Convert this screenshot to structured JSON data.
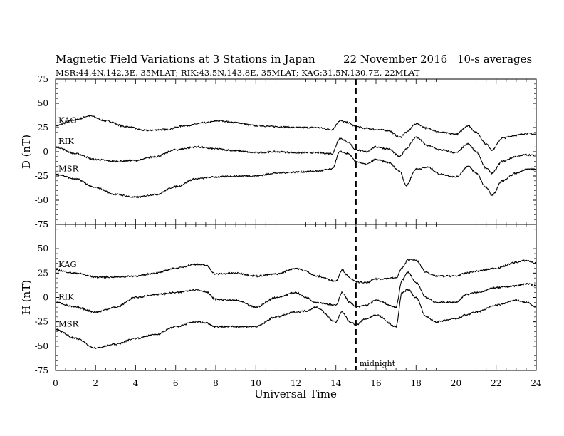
{
  "chart_data": {
    "type": "line",
    "title": "Magnetic Field Variations at 3 Stations in Japan",
    "date": "22 November 2016",
    "averaging": "10-s averages",
    "stations_info": "MSR:44.4N,142.3E, 35MLAT;  RIK:43.5N,143.8E, 35MLAT;  KAG:31.5N,130.7E, 22MLAT",
    "xlabel": "Universal Time",
    "xlim": [
      0,
      24
    ],
    "xticks": [
      "0",
      "2",
      "4",
      "6",
      "8",
      "10",
      "12",
      "14",
      "16",
      "18",
      "20",
      "22",
      "24"
    ],
    "midnight_line_x": 15,
    "midnight_label": "midnight",
    "panels": [
      {
        "ylabel": "D (nT)",
        "ylim": [
          -75,
          75
        ],
        "yticks": [
          "75",
          "50",
          "25",
          "0",
          "-25",
          "-50",
          "-75"
        ],
        "series": [
          {
            "name": "KAG",
            "x": [
              0,
              1,
              1.7,
              2.5,
              3.5,
              4.5,
              5.5,
              6.5,
              7.5,
              8.2,
              9,
              10,
              11,
              12,
              13,
              13.8,
              14.2,
              14.6,
              15,
              15.5,
              16,
              16.6,
              17.2,
              17.5,
              18,
              18.6,
              19.2,
              20,
              20.6,
              21,
              21.5,
              21.8,
              22.3,
              23,
              23.5,
              24
            ],
            "values": [
              27,
              33,
              37,
              32,
              26,
              22,
              23,
              27,
              30,
              32,
              30,
              27,
              26,
              25,
              25,
              23,
              32,
              30,
              26,
              24,
              23,
              22,
              15,
              20,
              29,
              24,
              20,
              18,
              27,
              20,
              8,
              2,
              14,
              17,
              19,
              18
            ]
          },
          {
            "name": "RIK",
            "x": [
              0,
              1,
              2,
              3,
              4,
              5,
              6,
              7,
              8,
              9,
              10,
              11,
              12,
              13,
              13.8,
              14.2,
              14.6,
              15,
              15.5,
              16,
              16.6,
              17.2,
              17.5,
              18,
              18.6,
              19.2,
              20,
              20.6,
              21,
              21.5,
              21.8,
              22.3,
              23,
              23.5,
              24
            ],
            "values": [
              5,
              -2,
              -8,
              -10,
              -9,
              -5,
              2,
              5,
              3,
              1,
              -1,
              0,
              -1,
              -1,
              -2,
              14,
              10,
              2,
              0,
              5,
              3,
              -5,
              3,
              15,
              6,
              2,
              -1,
              8,
              0,
              -17,
              -22,
              -10,
              -5,
              -3,
              -4
            ]
          },
          {
            "name": "MSR",
            "x": [
              0,
              1,
              2,
              3,
              4,
              5,
              6,
              7,
              8,
              9,
              10,
              11,
              12,
              13,
              13.8,
              14.2,
              14.6,
              15,
              15.5,
              16,
              16.6,
              17.2,
              17.5,
              18,
              18.6,
              19.2,
              20,
              20.6,
              21,
              21.5,
              21.8,
              22.3,
              23,
              23.5,
              24
            ],
            "values": [
              -23,
              -28,
              -37,
              -44,
              -47,
              -44,
              -36,
              -28,
              -26,
              -25,
              -25,
              -22,
              -21,
              -20,
              -18,
              0,
              -2,
              -10,
              -13,
              -8,
              -11,
              -20,
              -35,
              -18,
              -16,
              -23,
              -26,
              -15,
              -22,
              -37,
              -45,
              -30,
              -22,
              -18,
              -18
            ]
          }
        ]
      },
      {
        "ylabel": "H (nT)",
        "ylim": [
          -75,
          75
        ],
        "yticks": [
          "75",
          "50",
          "25",
          "0",
          "-25",
          "-50",
          "-75"
        ],
        "series": [
          {
            "name": "KAG",
            "x": [
              0,
              1,
              2,
              3,
              4,
              5,
              6,
              7,
              7.5,
              8,
              9,
              10,
              11,
              12,
              12.5,
              13,
              14,
              14.3,
              14.7,
              15,
              15.5,
              16,
              17,
              17.3,
              17.6,
              18,
              18.5,
              19,
              20,
              20.5,
              21,
              22,
              23,
              23.5,
              24
            ],
            "values": [
              28,
              25,
              21,
              21,
              22,
              25,
              30,
              34,
              33,
              24,
              25,
              22,
              24,
              30,
              27,
              22,
              17,
              28,
              20,
              16,
              15,
              19,
              20,
              30,
              39,
              38,
              26,
              22,
              22,
              25,
              27,
              30,
              36,
              38,
              35
            ]
          },
          {
            "name": "RIK",
            "x": [
              0,
              1,
              2,
              3,
              4,
              5,
              6,
              7,
              7.5,
              8,
              9,
              10,
              11,
              12,
              12.5,
              13,
              14,
              14.3,
              14.7,
              15,
              15.5,
              16,
              17,
              17.3,
              17.6,
              18,
              18.5,
              19,
              20,
              20.5,
              21,
              22,
              23,
              23.5,
              24
            ],
            "values": [
              -5,
              -10,
              -15,
              -10,
              0,
              3,
              5,
              8,
              6,
              -2,
              -3,
              -10,
              0,
              5,
              0,
              -5,
              -8,
              5,
              -5,
              -10,
              -8,
              -3,
              -10,
              18,
              26,
              15,
              0,
              -5,
              -5,
              3,
              5,
              10,
              12,
              14,
              12
            ]
          },
          {
            "name": "MSR",
            "x": [
              0,
              1,
              2,
              3,
              4,
              5,
              6,
              7,
              7.5,
              8,
              9,
              10,
              11,
              12,
              12.5,
              13,
              14,
              14.3,
              14.7,
              15,
              15.5,
              16,
              17,
              17.3,
              17.6,
              18,
              18.5,
              19,
              20,
              20.5,
              21,
              22,
              23,
              23.5,
              24
            ],
            "values": [
              -33,
              -42,
              -52,
              -48,
              -42,
              -38,
              -30,
              -25,
              -26,
              -30,
              -30,
              -30,
              -20,
              -15,
              -14,
              -10,
              -25,
              -15,
              -25,
              -28,
              -22,
              -18,
              -30,
              5,
              8,
              0,
              -20,
              -25,
              -22,
              -18,
              -15,
              -8,
              -3,
              -5,
              -10
            ]
          }
        ]
      }
    ]
  }
}
